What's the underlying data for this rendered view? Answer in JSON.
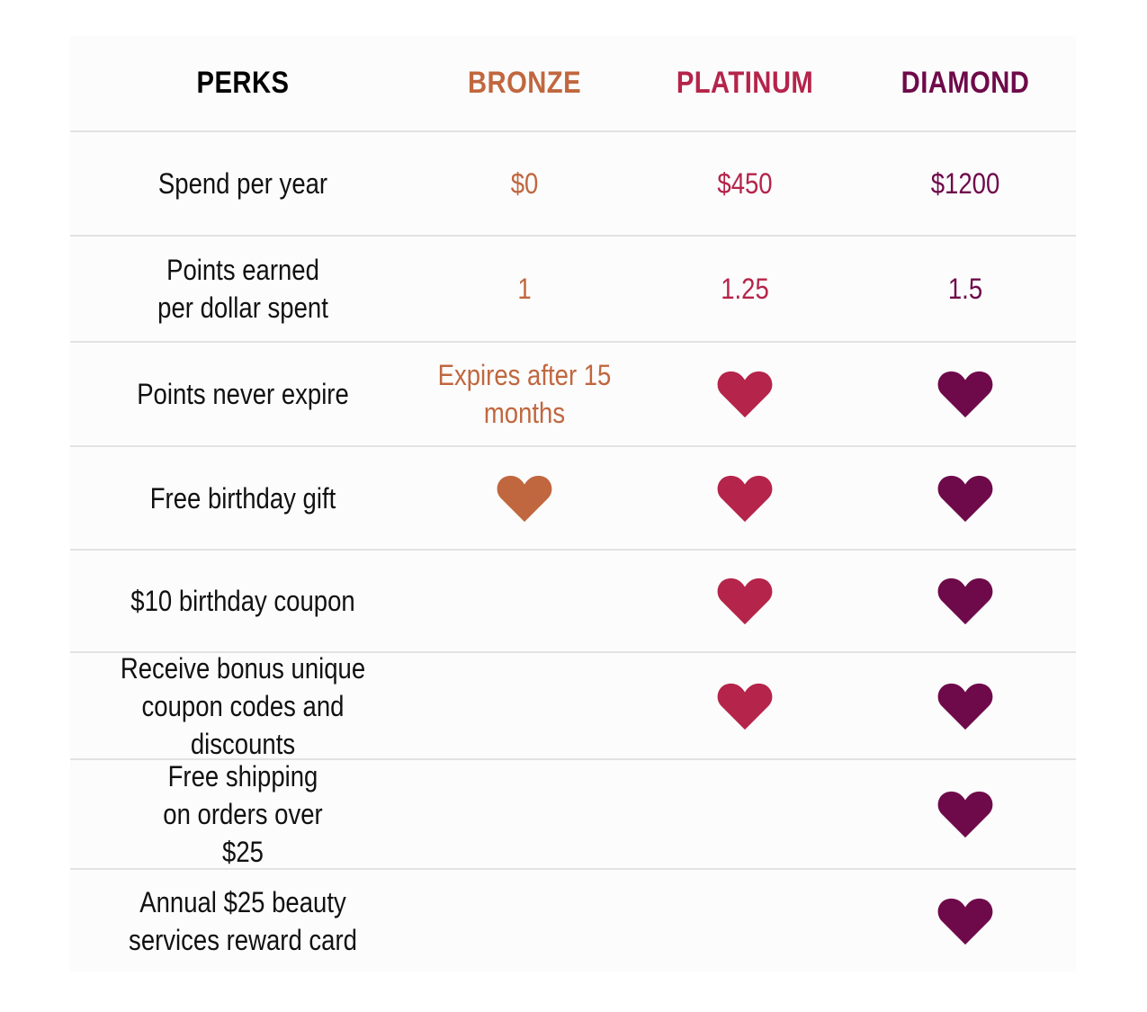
{
  "colors": {
    "bronze": "#c0673f",
    "platinum": "#b5244a",
    "diamond": "#6e0a4a",
    "perks_header": "#000000"
  },
  "header": {
    "perks": "PERKS",
    "bronze": "BRONZE",
    "platinum": "PLATINUM",
    "diamond": "DIAMOND"
  },
  "rows": [
    {
      "perk": "Spend per year",
      "bronze": "$0",
      "platinum": "$450",
      "diamond": "$1200"
    },
    {
      "perk": "Points earned per dollar spent",
      "bronze": "1",
      "platinum": "1.25",
      "diamond": "1.5"
    },
    {
      "perk": "Points never expire",
      "bronze": "Expires after 15 months",
      "platinum_icon": "heart-icon",
      "diamond_icon": "heart-icon"
    },
    {
      "perk": "Free birthday gift",
      "bronze_icon": "heart-icon",
      "platinum_icon": "heart-icon",
      "diamond_icon": "heart-icon"
    },
    {
      "perk": "$10 birthday coupon",
      "platinum_icon": "heart-icon",
      "diamond_icon": "heart-icon"
    },
    {
      "perk": "Receive bonus unique coupon codes and discounts",
      "platinum_icon": "heart-icon",
      "diamond_icon": "heart-icon"
    },
    {
      "perk": "Free shipping on orders over $25",
      "diamond_icon": "heart-icon"
    },
    {
      "perk": "Annual $25 beauty services reward card",
      "diamond_icon": "heart-icon"
    }
  ]
}
